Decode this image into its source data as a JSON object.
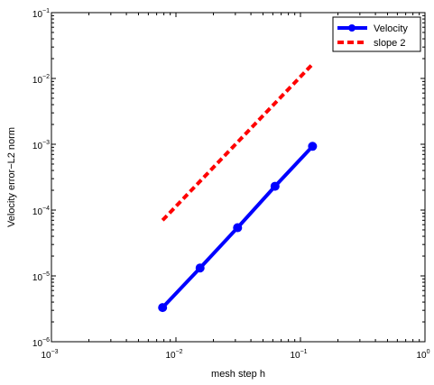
{
  "chart_data": {
    "type": "line",
    "xscale": "log",
    "yscale": "log",
    "xlabel": "mesh step h",
    "ylabel": "Velocity error−L2 norm",
    "xlim": [
      0.001,
      1
    ],
    "ylim": [
      1e-06,
      0.1
    ],
    "x_ticks": [
      {
        "base": "10",
        "exp": "−3"
      },
      {
        "base": "10",
        "exp": "−2"
      },
      {
        "base": "10",
        "exp": "−1"
      },
      {
        "base": "10",
        "exp": "0"
      }
    ],
    "y_ticks": [
      {
        "base": "10",
        "exp": "−6"
      },
      {
        "base": "10",
        "exp": "−5"
      },
      {
        "base": "10",
        "exp": "−4"
      },
      {
        "base": "10",
        "exp": "−3"
      },
      {
        "base": "10",
        "exp": "−2"
      },
      {
        "base": "10",
        "exp": "−1"
      }
    ],
    "grid": false,
    "legend_position": "top-right",
    "series": [
      {
        "name": "Velocity",
        "color": "#0000ff",
        "style": "solid",
        "marker": "circle",
        "x": [
          0.0078125,
          0.015625,
          0.03125,
          0.0625,
          0.125
        ],
        "y": [
          3.3e-06,
          1.32e-05,
          5.4e-05,
          0.00023,
          0.00093
        ]
      },
      {
        "name": "slope 2",
        "color": "#ff0000",
        "style": "dashed",
        "marker": "none",
        "x": [
          0.0078125,
          0.125
        ],
        "y": [
          7e-05,
          0.0165
        ]
      }
    ]
  }
}
